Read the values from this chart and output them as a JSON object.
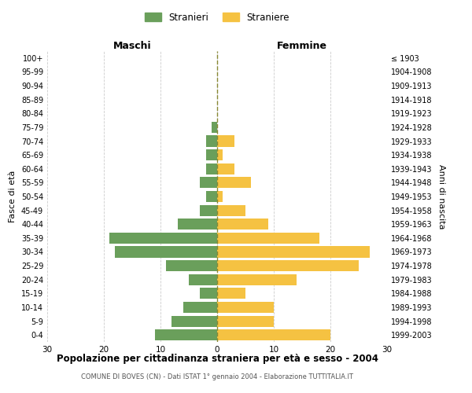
{
  "age_groups": [
    "0-4",
    "5-9",
    "10-14",
    "15-19",
    "20-24",
    "25-29",
    "30-34",
    "35-39",
    "40-44",
    "45-49",
    "50-54",
    "55-59",
    "60-64",
    "65-69",
    "70-74",
    "75-79",
    "80-84",
    "85-89",
    "90-94",
    "95-99",
    "100+"
  ],
  "birth_years": [
    "1999-2003",
    "1994-1998",
    "1989-1993",
    "1984-1988",
    "1979-1983",
    "1974-1978",
    "1969-1973",
    "1964-1968",
    "1959-1963",
    "1954-1958",
    "1949-1953",
    "1944-1948",
    "1939-1943",
    "1934-1938",
    "1929-1933",
    "1924-1928",
    "1919-1923",
    "1914-1918",
    "1909-1913",
    "1904-1908",
    "≤ 1903"
  ],
  "males": [
    11,
    8,
    6,
    3,
    5,
    9,
    18,
    19,
    7,
    3,
    2,
    3,
    2,
    2,
    2,
    1,
    0,
    0,
    0,
    0,
    0
  ],
  "females": [
    20,
    10,
    10,
    5,
    14,
    25,
    27,
    18,
    9,
    5,
    1,
    6,
    3,
    1,
    3,
    0,
    0,
    0,
    0,
    0,
    0
  ],
  "male_color": "#6a9f5b",
  "female_color": "#f5c242",
  "title": "Popolazione per cittadinanza straniera per età e sesso - 2004",
  "subtitle": "COMUNE DI BOVES (CN) - Dati ISTAT 1° gennaio 2004 - Elaborazione TUTTITALIA.IT",
  "xlabel_left": "Maschi",
  "xlabel_right": "Femmine",
  "ylabel_left": "Fasce di età",
  "ylabel_right": "Anni di nascita",
  "legend_male": "Stranieri",
  "legend_female": "Straniere",
  "xlim": 30,
  "background_color": "#ffffff",
  "grid_color": "#cccccc",
  "bar_height": 0.8
}
